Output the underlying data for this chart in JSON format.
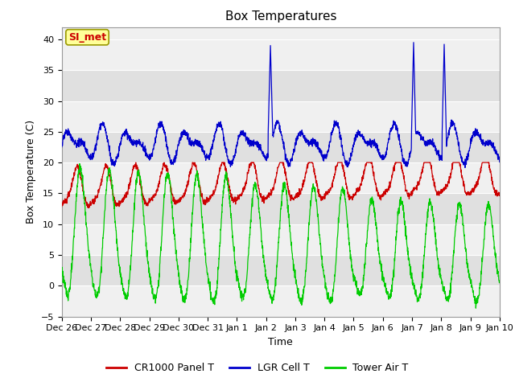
{
  "title": "Box Temperatures",
  "xlabel": "Time",
  "ylabel": "Box Temperature (C)",
  "ylim": [
    -5,
    42
  ],
  "yticks": [
    -5,
    0,
    5,
    10,
    15,
    20,
    25,
    30,
    35,
    40
  ],
  "xtick_labels": [
    "Dec 26",
    "Dec 27",
    "Dec 28",
    "Dec 29",
    "Dec 30",
    "Dec 31",
    "Jan 1",
    "Jan 2",
    "Jan 3",
    "Jan 4",
    "Jan 5",
    "Jan 6",
    "Jan 7",
    "Jan 8",
    "Jan 9",
    "Jan 10"
  ],
  "legend_labels": [
    "CR1000 Panel T",
    "LGR Cell T",
    "Tower Air T"
  ],
  "legend_colors": [
    "#cc0000",
    "#0000cc",
    "#00cc00"
  ],
  "line_colors": [
    "#cc0000",
    "#0000cc",
    "#00cc00"
  ],
  "background_color": "#ffffff",
  "plot_bg_light": "#f0f0f0",
  "plot_bg_dark": "#e0e0e0",
  "annotation_text": "SI_met",
  "annotation_color": "#cc0000",
  "annotation_bg": "#ffff99",
  "annotation_border": "#999900",
  "title_fontsize": 11,
  "axis_fontsize": 9,
  "tick_fontsize": 8,
  "legend_fontsize": 9,
  "grid_color": "#ffffff",
  "n_days": 15
}
